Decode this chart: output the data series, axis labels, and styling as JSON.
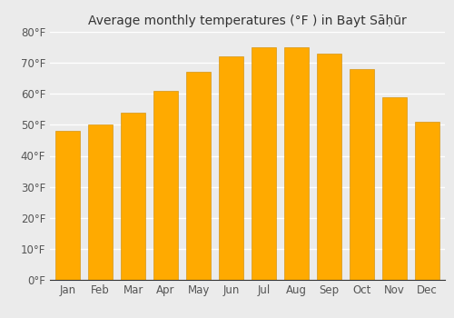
{
  "title": "Average monthly temperatures (°F ) in Bayt Sāḥūr",
  "months": [
    "Jan",
    "Feb",
    "Mar",
    "Apr",
    "May",
    "Jun",
    "Jul",
    "Aug",
    "Sep",
    "Oct",
    "Nov",
    "Dec"
  ],
  "values": [
    48,
    50,
    54,
    61,
    67,
    72,
    75,
    75,
    73,
    68,
    59,
    51
  ],
  "bar_color": "#FFAA00",
  "ylim": [
    0,
    80
  ],
  "yticks": [
    0,
    10,
    20,
    30,
    40,
    50,
    60,
    70,
    80
  ],
  "ytick_labels": [
    "0°F",
    "10°F",
    "20°F",
    "30°F",
    "40°F",
    "50°F",
    "60°F",
    "70°F",
    "80°F"
  ],
  "background_color": "#ebebeb",
  "grid_color": "#ffffff",
  "title_fontsize": 10,
  "tick_fontsize": 8.5
}
